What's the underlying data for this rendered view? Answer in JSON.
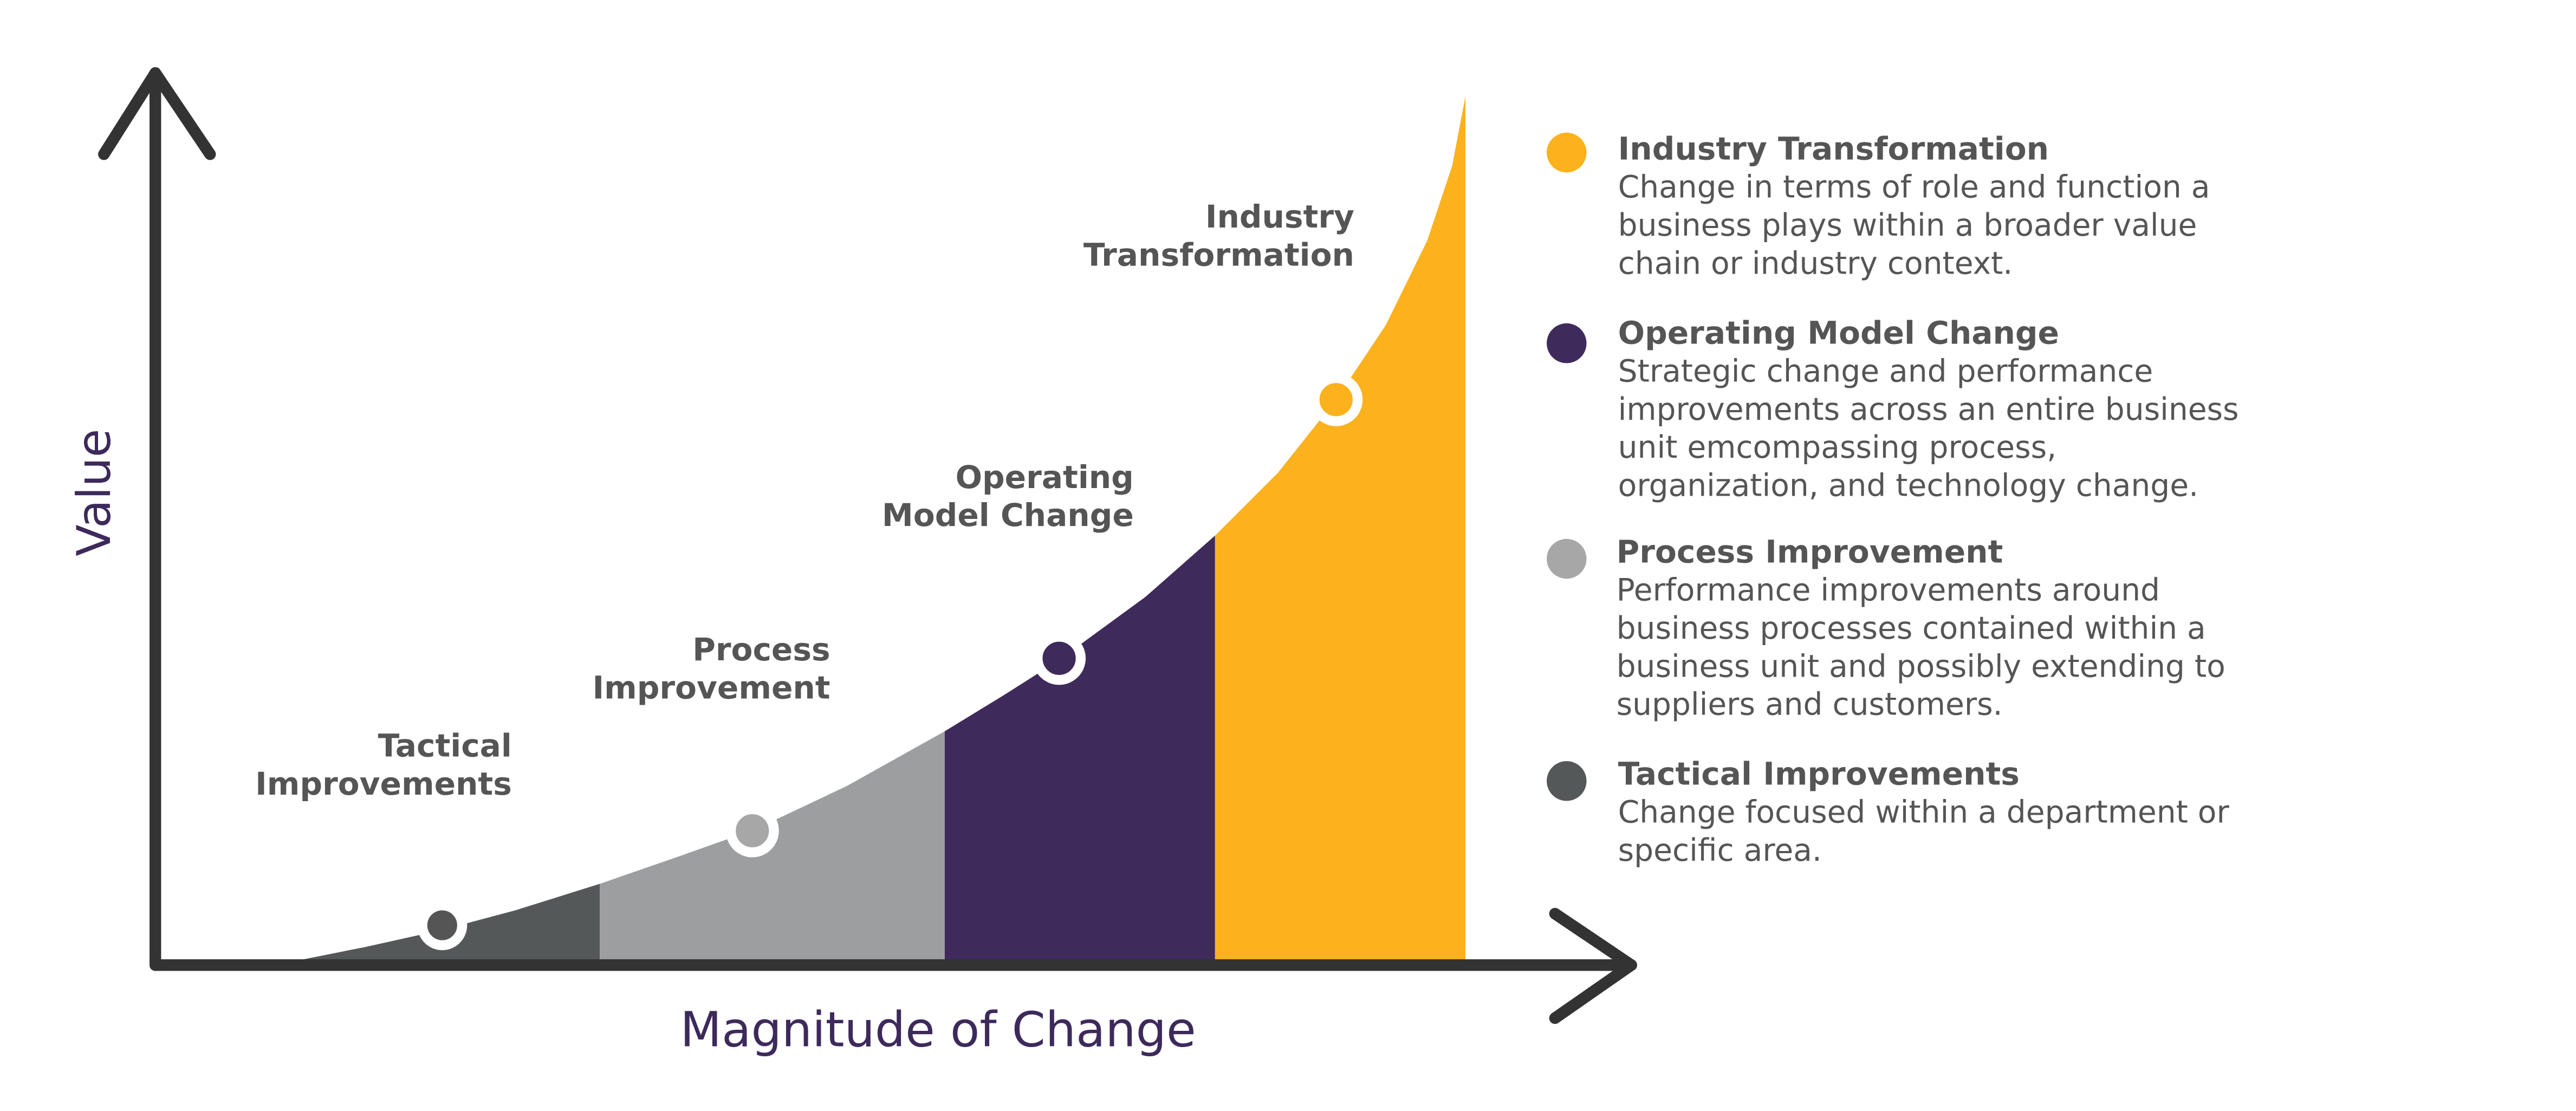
{
  "axes": {
    "y_label": "Value",
    "x_label": "Magnitude of Change"
  },
  "stages": [
    {
      "label": [
        "Tactical",
        "Improvements"
      ]
    },
    {
      "label": [
        "Process",
        "Improvement"
      ]
    },
    {
      "label": [
        "Operating",
        "Model Change"
      ]
    },
    {
      "label": [
        "Industry",
        "Transformation"
      ]
    }
  ],
  "legend": [
    {
      "title": "Industry Transformation",
      "description": [
        "Change in terms of role and function a",
        "business plays within a broader value",
        "chain or industry context."
      ]
    },
    {
      "title": "Operating Model Change",
      "description": [
        "Strategic change and performance",
        "improvements across an entire business",
        "unit emcompassing process,",
        "organization, and technology change."
      ]
    },
    {
      "title": "Process Improvement",
      "description": [
        "Performance improvements around",
        "business processes contained within a",
        "business unit and possibly extending to",
        "suppliers and customers."
      ]
    },
    {
      "title": "Tactical Improvements",
      "description": [
        "Change focused within a department or",
        "specific area."
      ]
    }
  ]
}
